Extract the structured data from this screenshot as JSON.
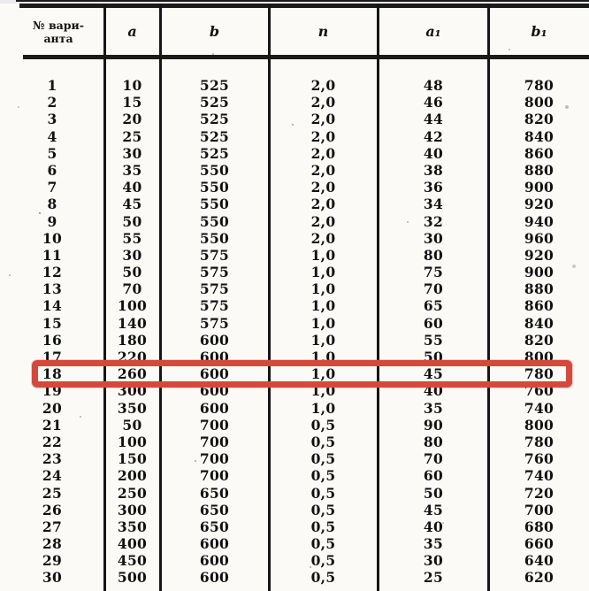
{
  "table": {
    "header": {
      "variant_label_line1": "№ вари-",
      "variant_label_line2": "анта",
      "columns": [
        "a",
        "b",
        "n",
        "a₁",
        "b₁"
      ]
    },
    "column_keys": [
      "variant_no",
      "a",
      "b",
      "n",
      "a1",
      "b1"
    ],
    "rows": [
      [
        "1",
        "10",
        "525",
        "2,0",
        "48",
        "780"
      ],
      [
        "2",
        "15",
        "525",
        "2,0",
        "46",
        "800"
      ],
      [
        "3",
        "20",
        "525",
        "2,0",
        "44",
        "820"
      ],
      [
        "4",
        "25",
        "525",
        "2,0",
        "42",
        "840"
      ],
      [
        "5",
        "30",
        "525",
        "2,0",
        "40",
        "860"
      ],
      [
        "6",
        "35",
        "550",
        "2,0",
        "38",
        "880"
      ],
      [
        "7",
        "40",
        "550",
        "2,0",
        "36",
        "900"
      ],
      [
        "8",
        "45",
        "550",
        "2,0",
        "34",
        "920"
      ],
      [
        "9",
        "50",
        "550",
        "2,0",
        "32",
        "940"
      ],
      [
        "10",
        "55",
        "550",
        "2,0",
        "30",
        "960"
      ],
      [
        "11",
        "30",
        "575",
        "1,0",
        "80",
        "920"
      ],
      [
        "12",
        "50",
        "575",
        "1,0",
        "75",
        "900"
      ],
      [
        "13",
        "70",
        "575",
        "1,0",
        "70",
        "880"
      ],
      [
        "14",
        "100",
        "575",
        "1,0",
        "65",
        "860"
      ],
      [
        "15",
        "140",
        "575",
        "1,0",
        "60",
        "840"
      ],
      [
        "16",
        "180",
        "600",
        "1,0",
        "55",
        "820"
      ],
      [
        "17",
        "220",
        "600",
        "1,0",
        "50",
        "800"
      ],
      [
        "18",
        "260",
        "600",
        "1,0",
        "45",
        "780"
      ],
      [
        "19",
        "300",
        "600",
        "1,0",
        "40",
        "760"
      ],
      [
        "20",
        "350",
        "600",
        "1,0",
        "35",
        "740"
      ],
      [
        "21",
        "50",
        "700",
        "0,5",
        "90",
        "800"
      ],
      [
        "22",
        "100",
        "700",
        "0,5",
        "80",
        "780"
      ],
      [
        "23",
        "150",
        "700",
        "0,5",
        "70",
        "760"
      ],
      [
        "24",
        "200",
        "700",
        "0,5",
        "60",
        "740"
      ],
      [
        "25",
        "250",
        "650",
        "0,5",
        "50",
        "720"
      ],
      [
        "26",
        "300",
        "650",
        "0,5",
        "45",
        "700"
      ],
      [
        "27",
        "350",
        "650",
        "0,5",
        "40",
        "680"
      ],
      [
        "28",
        "400",
        "600",
        "0,5",
        "35",
        "660"
      ],
      [
        "29",
        "450",
        "600",
        "0,5",
        "30",
        "640"
      ],
      [
        "30",
        "500",
        "600",
        "0,5",
        "25",
        "620"
      ]
    ]
  },
  "highlight": {
    "row_number": "18",
    "color": "#d5493d"
  },
  "colors": {
    "rule": "#1b1b1b",
    "paper": "#fbfaf7"
  }
}
